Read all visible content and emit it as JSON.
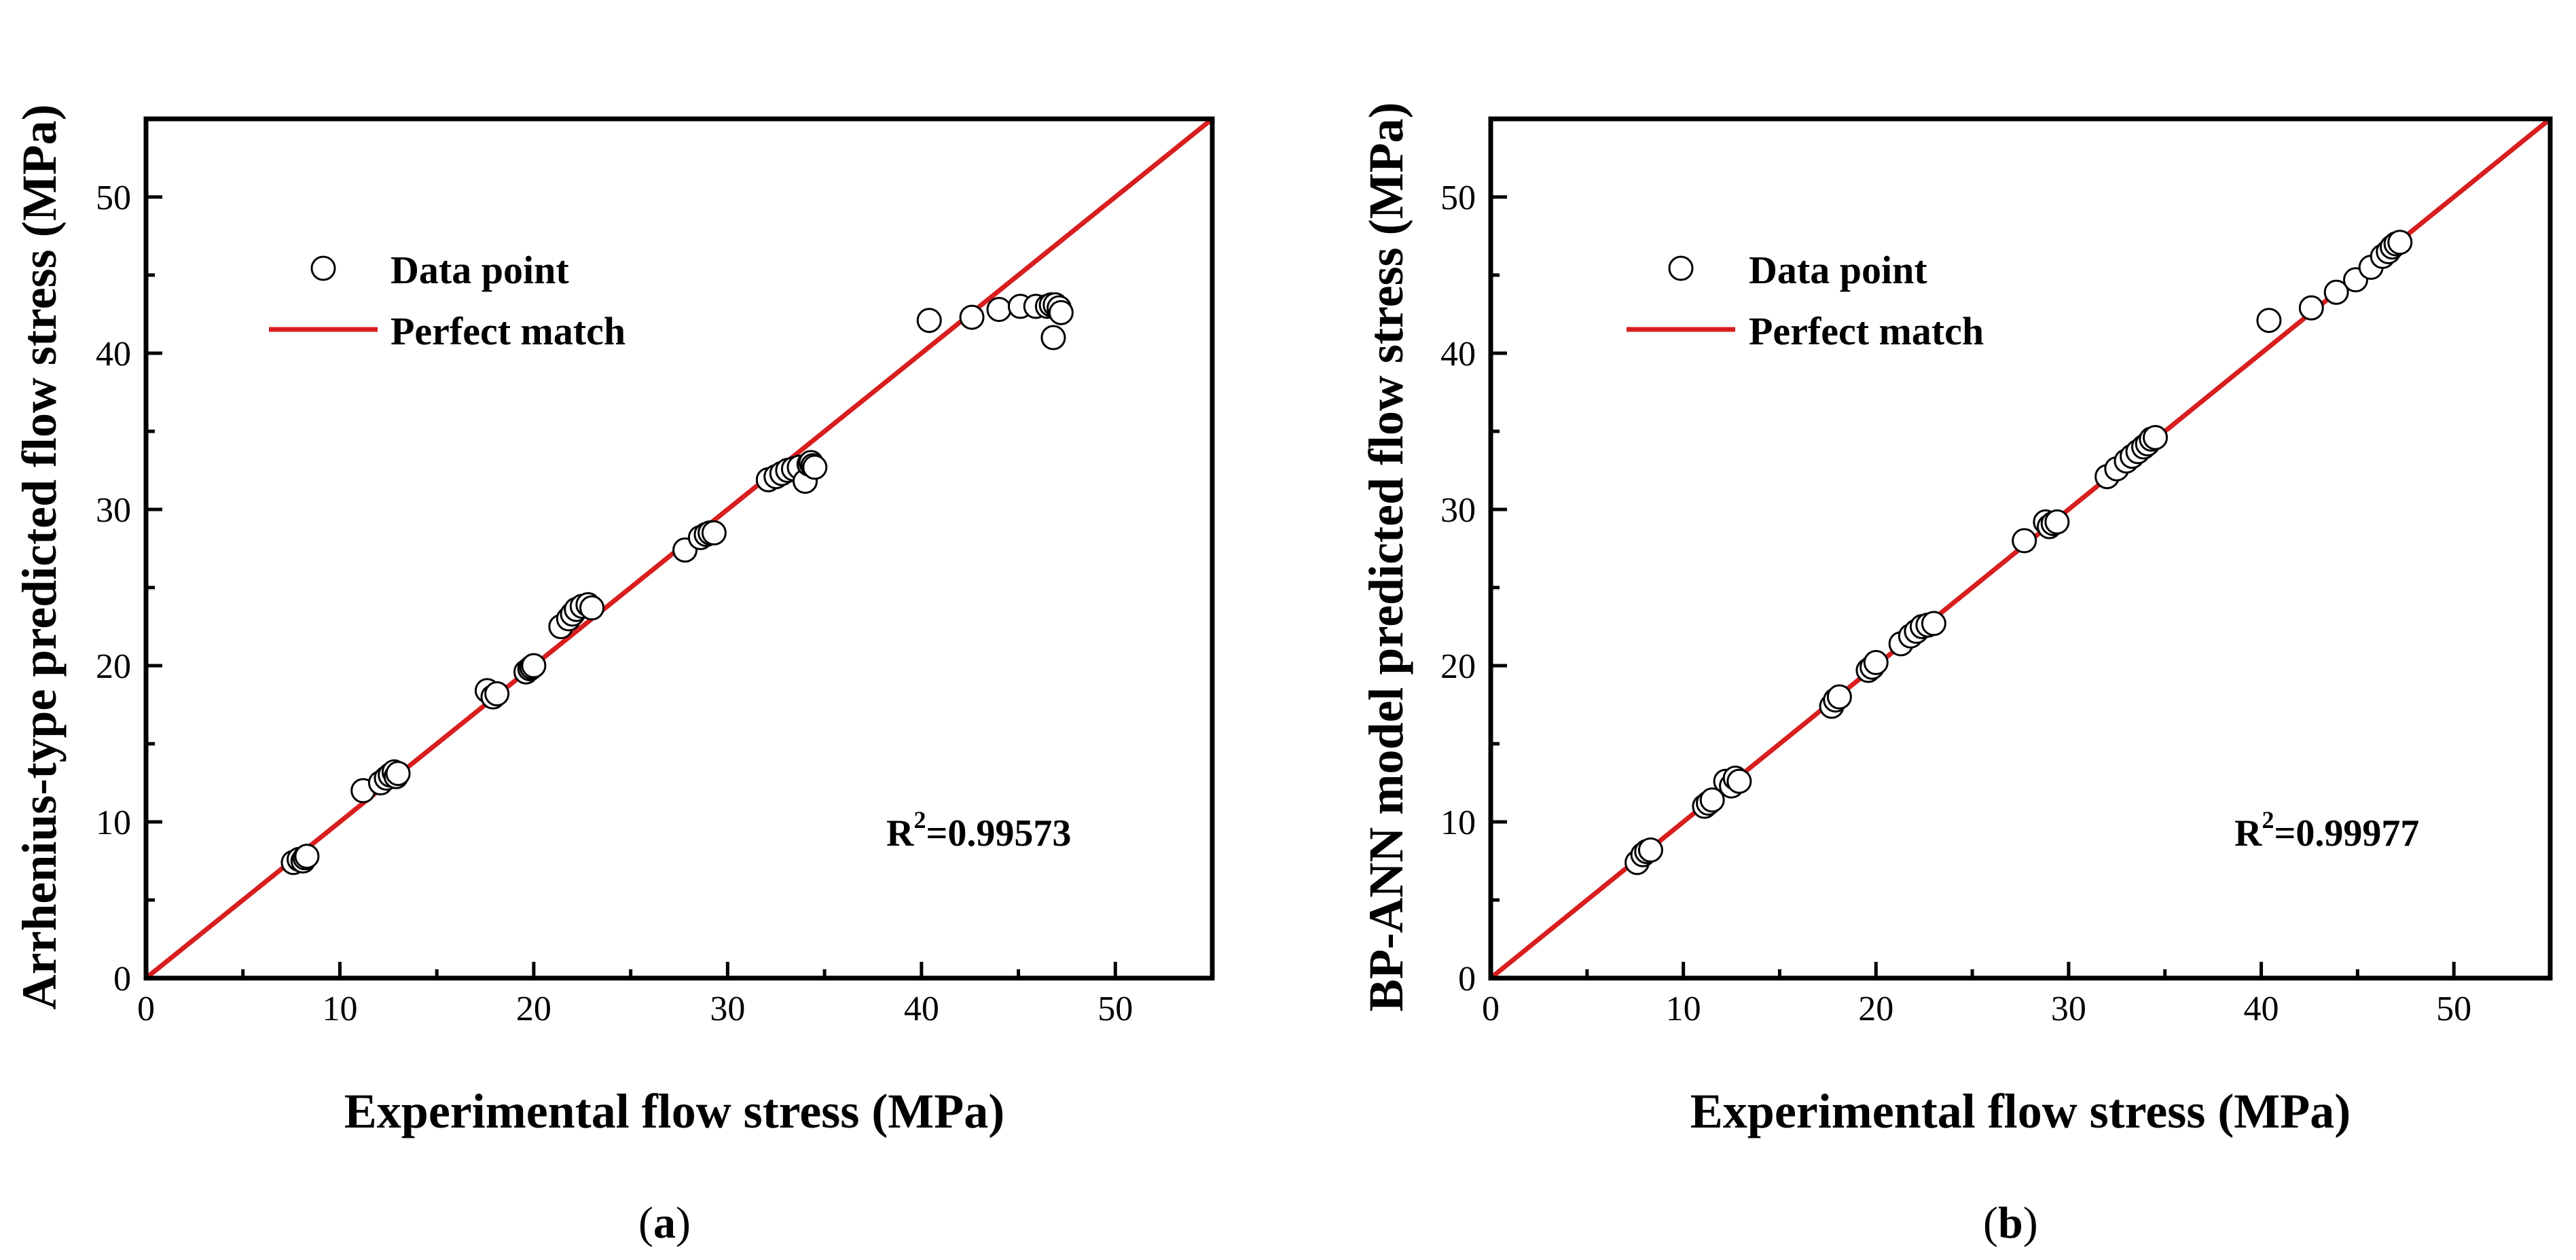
{
  "colors": {
    "line": "#d81e1e",
    "frame": "#000000",
    "marker_stroke": "#000000",
    "marker_fill": "#ffffff"
  },
  "chart_data": [
    {
      "type": "scatter",
      "panel_label": "(a)",
      "panel_letter": "a",
      "xlabel": "Experimental flow stress (MPa)",
      "ylabel": "Arrhenius-type predicted flow stress (MPa)",
      "xlim": [
        0,
        55
      ],
      "ylim": [
        0,
        55
      ],
      "xticks": [
        0,
        10,
        20,
        30,
        40,
        50
      ],
      "yticks": [
        0,
        10,
        20,
        30,
        40,
        50
      ],
      "legend": {
        "position": "top-left",
        "marker_label": "Data point",
        "line_label": "Perfect match"
      },
      "annotation": {
        "prefix": "R",
        "sup": "2",
        "value": "=0.99573"
      },
      "reference_line": {
        "name": "Perfect match",
        "x": [
          0,
          55
        ],
        "y": [
          0,
          55
        ]
      },
      "series": [
        {
          "name": "Data point",
          "x": [
            7.6,
            7.9,
            8.1,
            8.2,
            8.3,
            11.2,
            12.1,
            12.4,
            12.6,
            12.8,
            12.9,
            13.0,
            17.6,
            17.9,
            18.1,
            19.6,
            19.8,
            19.9,
            20.0,
            21.4,
            21.8,
            22.0,
            22.2,
            22.5,
            22.8,
            23.0,
            27.8,
            28.6,
            28.9,
            29.1,
            29.3,
            32.1,
            32.5,
            32.8,
            33.1,
            33.4,
            33.7,
            34.0,
            34.2,
            34.3,
            34.4,
            34.5,
            40.4,
            42.6,
            44.0,
            45.1,
            45.9,
            46.5,
            46.7,
            46.8,
            46.9,
            47.1,
            47.2
          ],
          "y": [
            7.4,
            7.6,
            7.5,
            7.7,
            7.8,
            12.0,
            12.5,
            12.8,
            13.0,
            13.2,
            12.9,
            13.1,
            18.4,
            18.0,
            18.2,
            19.6,
            19.8,
            19.9,
            20.0,
            22.5,
            23.0,
            23.3,
            23.6,
            23.8,
            23.9,
            23.7,
            27.4,
            28.2,
            28.4,
            28.5,
            28.5,
            31.9,
            32.1,
            32.3,
            32.5,
            32.6,
            32.7,
            31.8,
            32.9,
            33.0,
            32.8,
            32.7,
            42.1,
            42.3,
            42.8,
            43.0,
            43.0,
            43.0,
            43.1,
            41.0,
            43.1,
            42.9,
            42.6
          ]
        }
      ]
    },
    {
      "type": "scatter",
      "panel_label": "(b)",
      "panel_letter": "b",
      "xlabel": "Experimental flow stress (MPa)",
      "ylabel": "BP-ANN model predicted flow stress (MPa)",
      "xlim": [
        0,
        55
      ],
      "ylim": [
        0,
        55
      ],
      "xticks": [
        0,
        10,
        20,
        30,
        40,
        50
      ],
      "yticks": [
        0,
        10,
        20,
        30,
        40,
        50
      ],
      "legend": {
        "position": "top-left",
        "marker_label": "Data point",
        "line_label": "Perfect match"
      },
      "annotation": {
        "prefix": "R",
        "sup": "2",
        "value": "=0.99977"
      },
      "reference_line": {
        "name": "Perfect match",
        "x": [
          0,
          55
        ],
        "y": [
          0,
          55
        ]
      },
      "series": [
        {
          "name": "Data point",
          "x": [
            7.6,
            7.9,
            8.1,
            8.3,
            11.1,
            11.3,
            11.5,
            12.2,
            12.5,
            12.7,
            12.9,
            17.7,
            17.9,
            18.1,
            19.6,
            19.8,
            20.0,
            21.3,
            21.8,
            22.1,
            22.4,
            22.7,
            23.0,
            27.7,
            28.8,
            29.0,
            29.2,
            29.4,
            32.0,
            32.5,
            33.0,
            33.3,
            33.6,
            33.9,
            34.1,
            34.3,
            34.5,
            40.4,
            42.6,
            43.9,
            44.9,
            45.7,
            46.3,
            46.6,
            46.8,
            47.0,
            47.2
          ],
          "y": [
            7.4,
            7.9,
            8.1,
            8.2,
            11.0,
            11.2,
            11.4,
            12.6,
            12.3,
            12.8,
            12.6,
            17.4,
            17.8,
            18.0,
            19.7,
            19.9,
            20.2,
            21.4,
            21.9,
            22.2,
            22.5,
            22.6,
            22.7,
            28.0,
            29.2,
            28.9,
            29.1,
            29.2,
            32.1,
            32.6,
            33.1,
            33.4,
            33.7,
            34.0,
            34.2,
            34.5,
            34.6,
            42.1,
            42.9,
            43.9,
            44.7,
            45.5,
            46.2,
            46.5,
            46.8,
            47.0,
            47.1
          ]
        }
      ]
    }
  ]
}
